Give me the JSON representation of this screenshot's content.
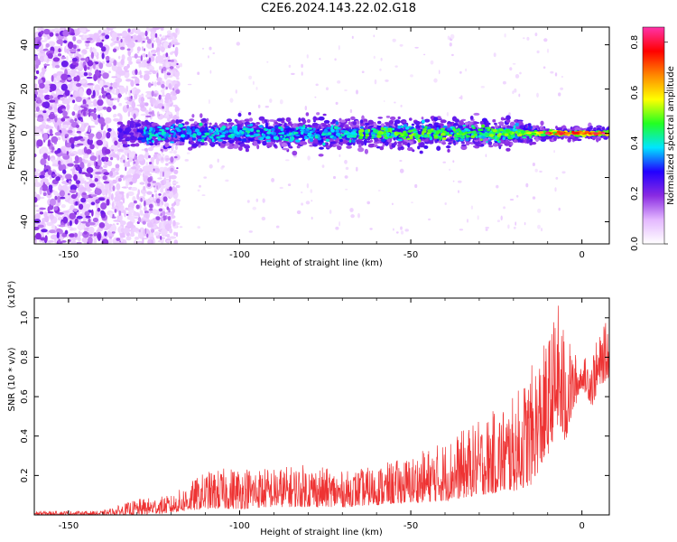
{
  "title": "C2E6.2024.143.22.02.G18",
  "chart_data": [
    {
      "type": "heatmap",
      "xlabel": "Height of straight line (km)",
      "ylabel": "Frequency (Hz)",
      "xlim": [
        -160,
        8
      ],
      "ylim": [
        -50,
        48
      ],
      "xticks": [
        -150,
        -100,
        -50,
        0
      ],
      "yticks": [
        -40,
        -20,
        0,
        20,
        40
      ],
      "colorbar": {
        "label": "Normalized spectral amplitude",
        "range": [
          0,
          0.86
        ],
        "ticks": [
          0.0,
          0.2,
          0.4,
          0.6,
          0.8
        ],
        "colormap": [
          "#ffffff",
          "#e4b8ff",
          "#8a2be2",
          "#2200ff",
          "#00e5ff",
          "#22ff22",
          "#ffff00",
          "#ff8800",
          "#ff0000",
          "#ff33aa"
        ]
      }
    },
    {
      "type": "line",
      "xlabel": "Height of straight line (km)",
      "ylabel": "SNR (10 * v/v)",
      "y_multiplier": "(x10⁴)",
      "xlim": [
        -160,
        8
      ],
      "ylim": [
        0,
        1.1
      ],
      "xticks": [
        -150,
        -100,
        -50,
        0
      ],
      "yticks": [
        0.2,
        0.4,
        0.6,
        0.8,
        1.0
      ],
      "color": "#ee3333",
      "envelope": {
        "x": [
          -160,
          -140,
          -130,
          -120,
          -115,
          -110,
          -100,
          -90,
          -80,
          -70,
          -60,
          -50,
          -40,
          -30,
          -20,
          -15,
          -10,
          -7,
          -5,
          -3,
          0,
          3,
          5,
          8
        ],
        "y_min": [
          0.0,
          0.0,
          0.0,
          0.01,
          0.02,
          0.03,
          0.03,
          0.04,
          0.04,
          0.04,
          0.05,
          0.06,
          0.07,
          0.1,
          0.12,
          0.15,
          0.3,
          0.45,
          0.35,
          0.5,
          0.65,
          0.55,
          0.65,
          0.7
        ],
        "y_max": [
          0.02,
          0.02,
          0.08,
          0.1,
          0.16,
          0.22,
          0.25,
          0.24,
          0.26,
          0.22,
          0.25,
          0.3,
          0.38,
          0.48,
          0.6,
          0.75,
          0.9,
          1.08,
          0.95,
          0.85,
          0.78,
          0.85,
          0.9,
          1.02
        ]
      }
    }
  ]
}
